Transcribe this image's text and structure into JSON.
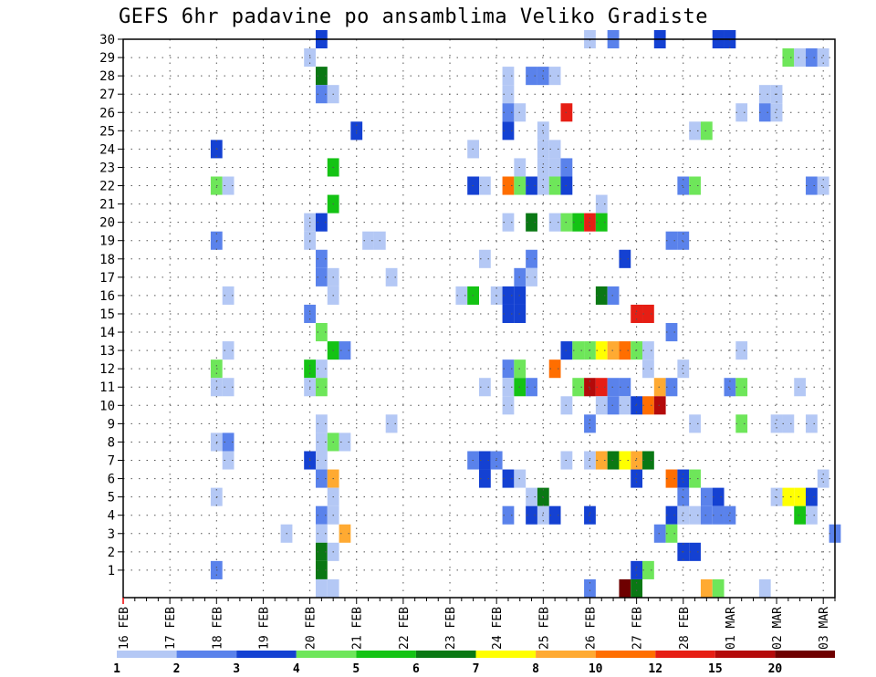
{
  "chart_data": {
    "type": "heatmap",
    "title": "GEFS 6hr padavine po ansamblima Veliko Gradiste",
    "y_ticks": [
      "1",
      "2",
      "3",
      "4",
      "5",
      "6",
      "7",
      "8",
      "9",
      "10",
      "11",
      "12",
      "13",
      "14",
      "15",
      "16",
      "17",
      "18",
      "19",
      "20",
      "21",
      "22",
      "23",
      "24",
      "25",
      "26",
      "27",
      "28",
      "29",
      "30"
    ],
    "ylim": [
      0,
      30
    ],
    "x_ticks": [
      "16 FEB",
      "17 FEB",
      "18 FEB",
      "19 FEB",
      "20 FEB",
      "21 FEB",
      "22 FEB",
      "23 FEB",
      "24 FEB",
      "25 FEB",
      "26 FEB",
      "27 FEB",
      "28 FEB",
      "01 MAR",
      "02 MAR",
      "03 MAR"
    ],
    "x_time_steps_6h": 61,
    "grid": true,
    "legend": {
      "placement": "bottom",
      "labels": [
        "1",
        "2",
        "3",
        "4",
        "5",
        "6",
        "7",
        "8",
        "10",
        "12",
        "15",
        "20"
      ],
      "colors": [
        "#b4c8f5",
        "#5a82eb",
        "#1441d2",
        "#6ee65a",
        "#14c314",
        "#0a7814",
        "#ffff00",
        "#ffaa32",
        "#ff6e00",
        "#e61e14",
        "#b40a0a",
        "#6e0000"
      ]
    },
    "cells": [
      [
        17,
        30,
        2
      ],
      [
        40,
        30,
        0
      ],
      [
        42,
        30,
        1
      ],
      [
        46,
        30,
        2
      ],
      [
        51,
        30,
        2
      ],
      [
        52,
        30,
        2
      ],
      [
        16,
        29,
        0
      ],
      [
        57,
        29,
        3
      ],
      [
        58,
        29,
        0
      ],
      [
        59,
        29,
        1
      ],
      [
        60,
        29,
        0
      ],
      [
        17,
        28,
        5
      ],
      [
        33,
        28,
        0
      ],
      [
        35,
        28,
        1
      ],
      [
        36,
        28,
        1
      ],
      [
        37,
        28,
        0
      ],
      [
        17,
        27,
        1
      ],
      [
        18,
        27,
        0
      ],
      [
        33,
        27,
        0
      ],
      [
        55,
        27,
        0
      ],
      [
        56,
        27,
        0
      ],
      [
        33,
        26,
        1
      ],
      [
        34,
        26,
        0
      ],
      [
        38,
        26,
        9
      ],
      [
        53,
        26,
        0
      ],
      [
        55,
        26,
        1
      ],
      [
        56,
        26,
        0
      ],
      [
        20,
        25,
        2
      ],
      [
        33,
        25,
        2
      ],
      [
        36,
        25,
        0
      ],
      [
        49,
        25,
        0
      ],
      [
        50,
        25,
        3
      ],
      [
        8,
        24,
        2
      ],
      [
        30,
        24,
        0
      ],
      [
        36,
        24,
        0
      ],
      [
        37,
        24,
        0
      ],
      [
        18,
        23,
        4
      ],
      [
        34,
        23,
        0
      ],
      [
        36,
        23,
        0
      ],
      [
        37,
        23,
        0
      ],
      [
        38,
        23,
        1
      ],
      [
        8,
        22,
        3
      ],
      [
        9,
        22,
        0
      ],
      [
        30,
        22,
        2
      ],
      [
        31,
        22,
        0
      ],
      [
        33,
        22,
        8
      ],
      [
        34,
        22,
        3
      ],
      [
        35,
        22,
        2
      ],
      [
        36,
        22,
        0
      ],
      [
        37,
        22,
        3
      ],
      [
        38,
        22,
        2
      ],
      [
        48,
        22,
        1
      ],
      [
        49,
        22,
        3
      ],
      [
        59,
        22,
        1
      ],
      [
        60,
        22,
        0
      ],
      [
        18,
        21,
        4
      ],
      [
        41,
        21,
        0
      ],
      [
        16,
        20,
        0
      ],
      [
        17,
        20,
        2
      ],
      [
        33,
        20,
        0
      ],
      [
        35,
        20,
        5
      ],
      [
        37,
        20,
        0
      ],
      [
        38,
        20,
        3
      ],
      [
        39,
        20,
        4
      ],
      [
        40,
        20,
        9
      ],
      [
        41,
        20,
        4
      ],
      [
        8,
        19,
        1
      ],
      [
        16,
        19,
        0
      ],
      [
        21,
        19,
        0
      ],
      [
        22,
        19,
        0
      ],
      [
        47,
        19,
        1
      ],
      [
        48,
        19,
        1
      ],
      [
        17,
        18,
        1
      ],
      [
        31,
        18,
        0
      ],
      [
        35,
        18,
        1
      ],
      [
        43,
        18,
        2
      ],
      [
        17,
        17,
        1
      ],
      [
        18,
        17,
        0
      ],
      [
        34,
        17,
        1
      ],
      [
        35,
        17,
        0
      ],
      [
        23,
        17,
        0
      ],
      [
        9,
        16,
        0
      ],
      [
        18,
        16,
        0
      ],
      [
        29,
        16,
        0
      ],
      [
        30,
        16,
        4
      ],
      [
        32,
        16,
        0
      ],
      [
        33,
        16,
        2
      ],
      [
        34,
        16,
        2
      ],
      [
        41,
        16,
        5
      ],
      [
        42,
        16,
        1
      ],
      [
        16,
        15,
        1
      ],
      [
        33,
        15,
        2
      ],
      [
        34,
        15,
        2
      ],
      [
        44,
        15,
        9
      ],
      [
        45,
        15,
        9
      ],
      [
        17,
        14,
        3
      ],
      [
        47,
        14,
        1
      ],
      [
        9,
        13,
        0
      ],
      [
        18,
        13,
        4
      ],
      [
        19,
        13,
        1
      ],
      [
        38,
        13,
        2
      ],
      [
        39,
        13,
        3
      ],
      [
        40,
        13,
        3
      ],
      [
        41,
        13,
        6
      ],
      [
        42,
        13,
        7
      ],
      [
        43,
        13,
        8
      ],
      [
        44,
        13,
        3
      ],
      [
        45,
        13,
        0
      ],
      [
        53,
        13,
        0
      ],
      [
        8,
        12,
        3
      ],
      [
        16,
        12,
        4
      ],
      [
        17,
        12,
        0
      ],
      [
        33,
        12,
        1
      ],
      [
        34,
        12,
        3
      ],
      [
        37,
        12,
        8
      ],
      [
        45,
        12,
        0
      ],
      [
        48,
        12,
        0
      ],
      [
        8,
        11,
        0
      ],
      [
        9,
        11,
        0
      ],
      [
        16,
        11,
        0
      ],
      [
        17,
        11,
        3
      ],
      [
        31,
        11,
        0
      ],
      [
        33,
        11,
        0
      ],
      [
        34,
        11,
        4
      ],
      [
        35,
        11,
        1
      ],
      [
        39,
        11,
        3
      ],
      [
        40,
        11,
        10
      ],
      [
        41,
        11,
        9
      ],
      [
        42,
        11,
        1
      ],
      [
        43,
        11,
        1
      ],
      [
        46,
        11,
        7
      ],
      [
        47,
        11,
        1
      ],
      [
        52,
        11,
        1
      ],
      [
        53,
        11,
        3
      ],
      [
        58,
        11,
        0
      ],
      [
        33,
        10,
        0
      ],
      [
        38,
        10,
        0
      ],
      [
        41,
        10,
        0
      ],
      [
        42,
        10,
        1
      ],
      [
        43,
        10,
        0
      ],
      [
        44,
        10,
        2
      ],
      [
        45,
        10,
        8
      ],
      [
        46,
        10,
        10
      ],
      [
        17,
        9,
        0
      ],
      [
        23,
        9,
        0
      ],
      [
        40,
        9,
        1
      ],
      [
        49,
        9,
        0
      ],
      [
        53,
        9,
        3
      ],
      [
        56,
        9,
        0
      ],
      [
        57,
        9,
        0
      ],
      [
        59,
        9,
        0
      ],
      [
        8,
        8,
        0
      ],
      [
        9,
        8,
        1
      ],
      [
        17,
        8,
        0
      ],
      [
        18,
        8,
        3
      ],
      [
        19,
        8,
        0
      ],
      [
        9,
        7,
        0
      ],
      [
        16,
        7,
        2
      ],
      [
        17,
        7,
        0
      ],
      [
        30,
        7,
        1
      ],
      [
        31,
        7,
        2
      ],
      [
        32,
        7,
        1
      ],
      [
        38,
        7,
        0
      ],
      [
        40,
        7,
        0
      ],
      [
        41,
        7,
        7
      ],
      [
        42,
        7,
        5
      ],
      [
        43,
        7,
        6
      ],
      [
        44,
        7,
        7
      ],
      [
        45,
        7,
        5
      ],
      [
        17,
        6,
        1
      ],
      [
        18,
        6,
        7
      ],
      [
        31,
        6,
        2
      ],
      [
        33,
        6,
        2
      ],
      [
        34,
        6,
        0
      ],
      [
        44,
        6,
        2
      ],
      [
        47,
        6,
        8
      ],
      [
        48,
        6,
        2
      ],
      [
        49,
        6,
        3
      ],
      [
        60,
        6,
        0
      ],
      [
        8,
        5,
        0
      ],
      [
        18,
        5,
        0
      ],
      [
        35,
        5,
        0
      ],
      [
        36,
        5,
        5
      ],
      [
        48,
        5,
        1
      ],
      [
        50,
        5,
        1
      ],
      [
        51,
        5,
        2
      ],
      [
        56,
        5,
        0
      ],
      [
        57,
        5,
        6
      ],
      [
        58,
        5,
        6
      ],
      [
        59,
        5,
        2
      ],
      [
        17,
        4,
        1
      ],
      [
        18,
        4,
        0
      ],
      [
        33,
        4,
        1
      ],
      [
        35,
        4,
        2
      ],
      [
        36,
        4,
        0
      ],
      [
        37,
        4,
        2
      ],
      [
        40,
        4,
        2
      ],
      [
        47,
        4,
        2
      ],
      [
        48,
        4,
        0
      ],
      [
        49,
        4,
        0
      ],
      [
        50,
        4,
        1
      ],
      [
        51,
        4,
        1
      ],
      [
        52,
        4,
        1
      ],
      [
        58,
        4,
        4
      ],
      [
        59,
        4,
        0
      ],
      [
        14,
        3,
        0
      ],
      [
        17,
        3,
        0
      ],
      [
        19,
        3,
        7
      ],
      [
        46,
        3,
        1
      ],
      [
        47,
        3,
        3
      ],
      [
        61,
        3,
        1
      ],
      [
        17,
        2,
        5
      ],
      [
        18,
        2,
        0
      ],
      [
        48,
        2,
        2
      ],
      [
        49,
        2,
        2
      ],
      [
        8,
        1,
        1
      ],
      [
        17,
        1,
        5
      ],
      [
        44,
        1,
        2
      ],
      [
        45,
        1,
        3
      ],
      [
        17,
        0,
        0
      ],
      [
        18,
        0,
        0
      ],
      [
        40,
        0,
        1
      ],
      [
        43,
        0,
        11
      ],
      [
        44,
        0,
        5
      ],
      [
        50,
        0,
        7
      ],
      [
        51,
        0,
        3
      ],
      [
        55,
        0,
        0
      ]
    ]
  }
}
